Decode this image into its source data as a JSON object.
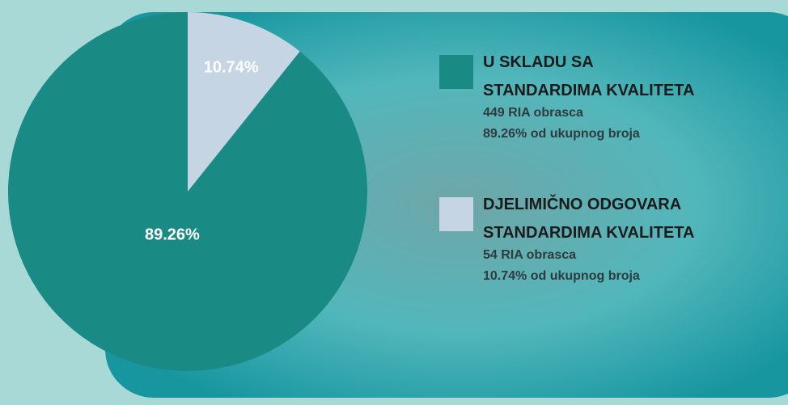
{
  "chart_data": {
    "type": "pie",
    "categories": [
      "U SKLADU SA\nSTANDARDIMA KVALITETA",
      "DJELIMIČNO ODGOVARA\nSTANDARDIMA KVALITETA"
    ],
    "values": [
      89.26,
      10.74
    ],
    "value_labels": [
      "89.26%",
      "10.74%"
    ],
    "colors": [
      "#1a8a85",
      "#c5d5e4"
    ],
    "legend_details": [
      [
        "449 RIA obrasca",
        "89.26% od ukupnog broja"
      ],
      [
        "54 RIA obrasca",
        "10.74% od ukupnog broja"
      ]
    ],
    "legend": "right"
  }
}
